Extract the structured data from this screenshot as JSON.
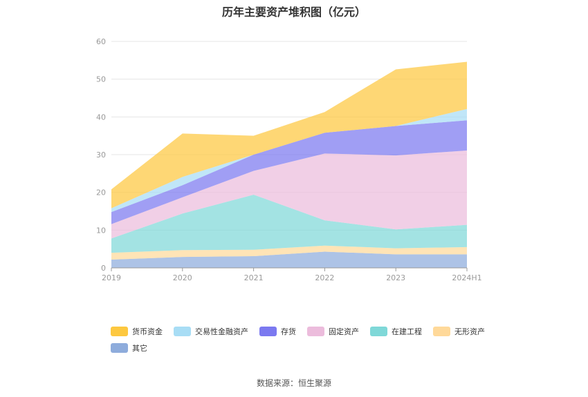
{
  "title": "历年主要资产堆积图（亿元）",
  "source": "数据来源：恒生聚源",
  "chart_data": {
    "type": "area",
    "stacked": true,
    "x": [
      "2019",
      "2020",
      "2021",
      "2022",
      "2023",
      "2024H1"
    ],
    "ylim": [
      0,
      60
    ],
    "yticks": [
      0,
      10,
      20,
      30,
      40,
      50,
      60
    ],
    "grid": true,
    "legend_position": "bottom",
    "series": [
      {
        "name": "其它",
        "color": "#8eacdc",
        "values": [
          2.2,
          2.9,
          3.1,
          4.3,
          3.6,
          3.6
        ]
      },
      {
        "name": "无形资产",
        "color": "#ffd99a",
        "values": [
          1.8,
          1.8,
          1.7,
          1.6,
          1.6,
          1.9
        ]
      },
      {
        "name": "在建工程",
        "color": "#7fd8d8",
        "values": [
          3.8,
          9.7,
          14.6,
          6.7,
          5.0,
          5.9
        ]
      },
      {
        "name": "固定资产",
        "color": "#ecbcdc",
        "values": [
          3.8,
          4.3,
          6.3,
          17.7,
          19.6,
          19.7
        ]
      },
      {
        "name": "存货",
        "color": "#7b79f0",
        "values": [
          3.2,
          3.2,
          4.3,
          5.5,
          7.8,
          8.0
        ]
      },
      {
        "name": "交易性金融资产",
        "color": "#a8ddf5",
        "values": [
          1.0,
          2.2,
          0.0,
          0.0,
          0.0,
          3.0
        ]
      },
      {
        "name": "货币资金",
        "color": "#fdc840",
        "values": [
          5.0,
          11.5,
          5.0,
          5.5,
          15.0,
          12.5
        ]
      }
    ],
    "legend_order": [
      "货币资金",
      "交易性金融资产",
      "存货",
      "固定资产",
      "在建工程",
      "无形资产",
      "其它"
    ]
  }
}
